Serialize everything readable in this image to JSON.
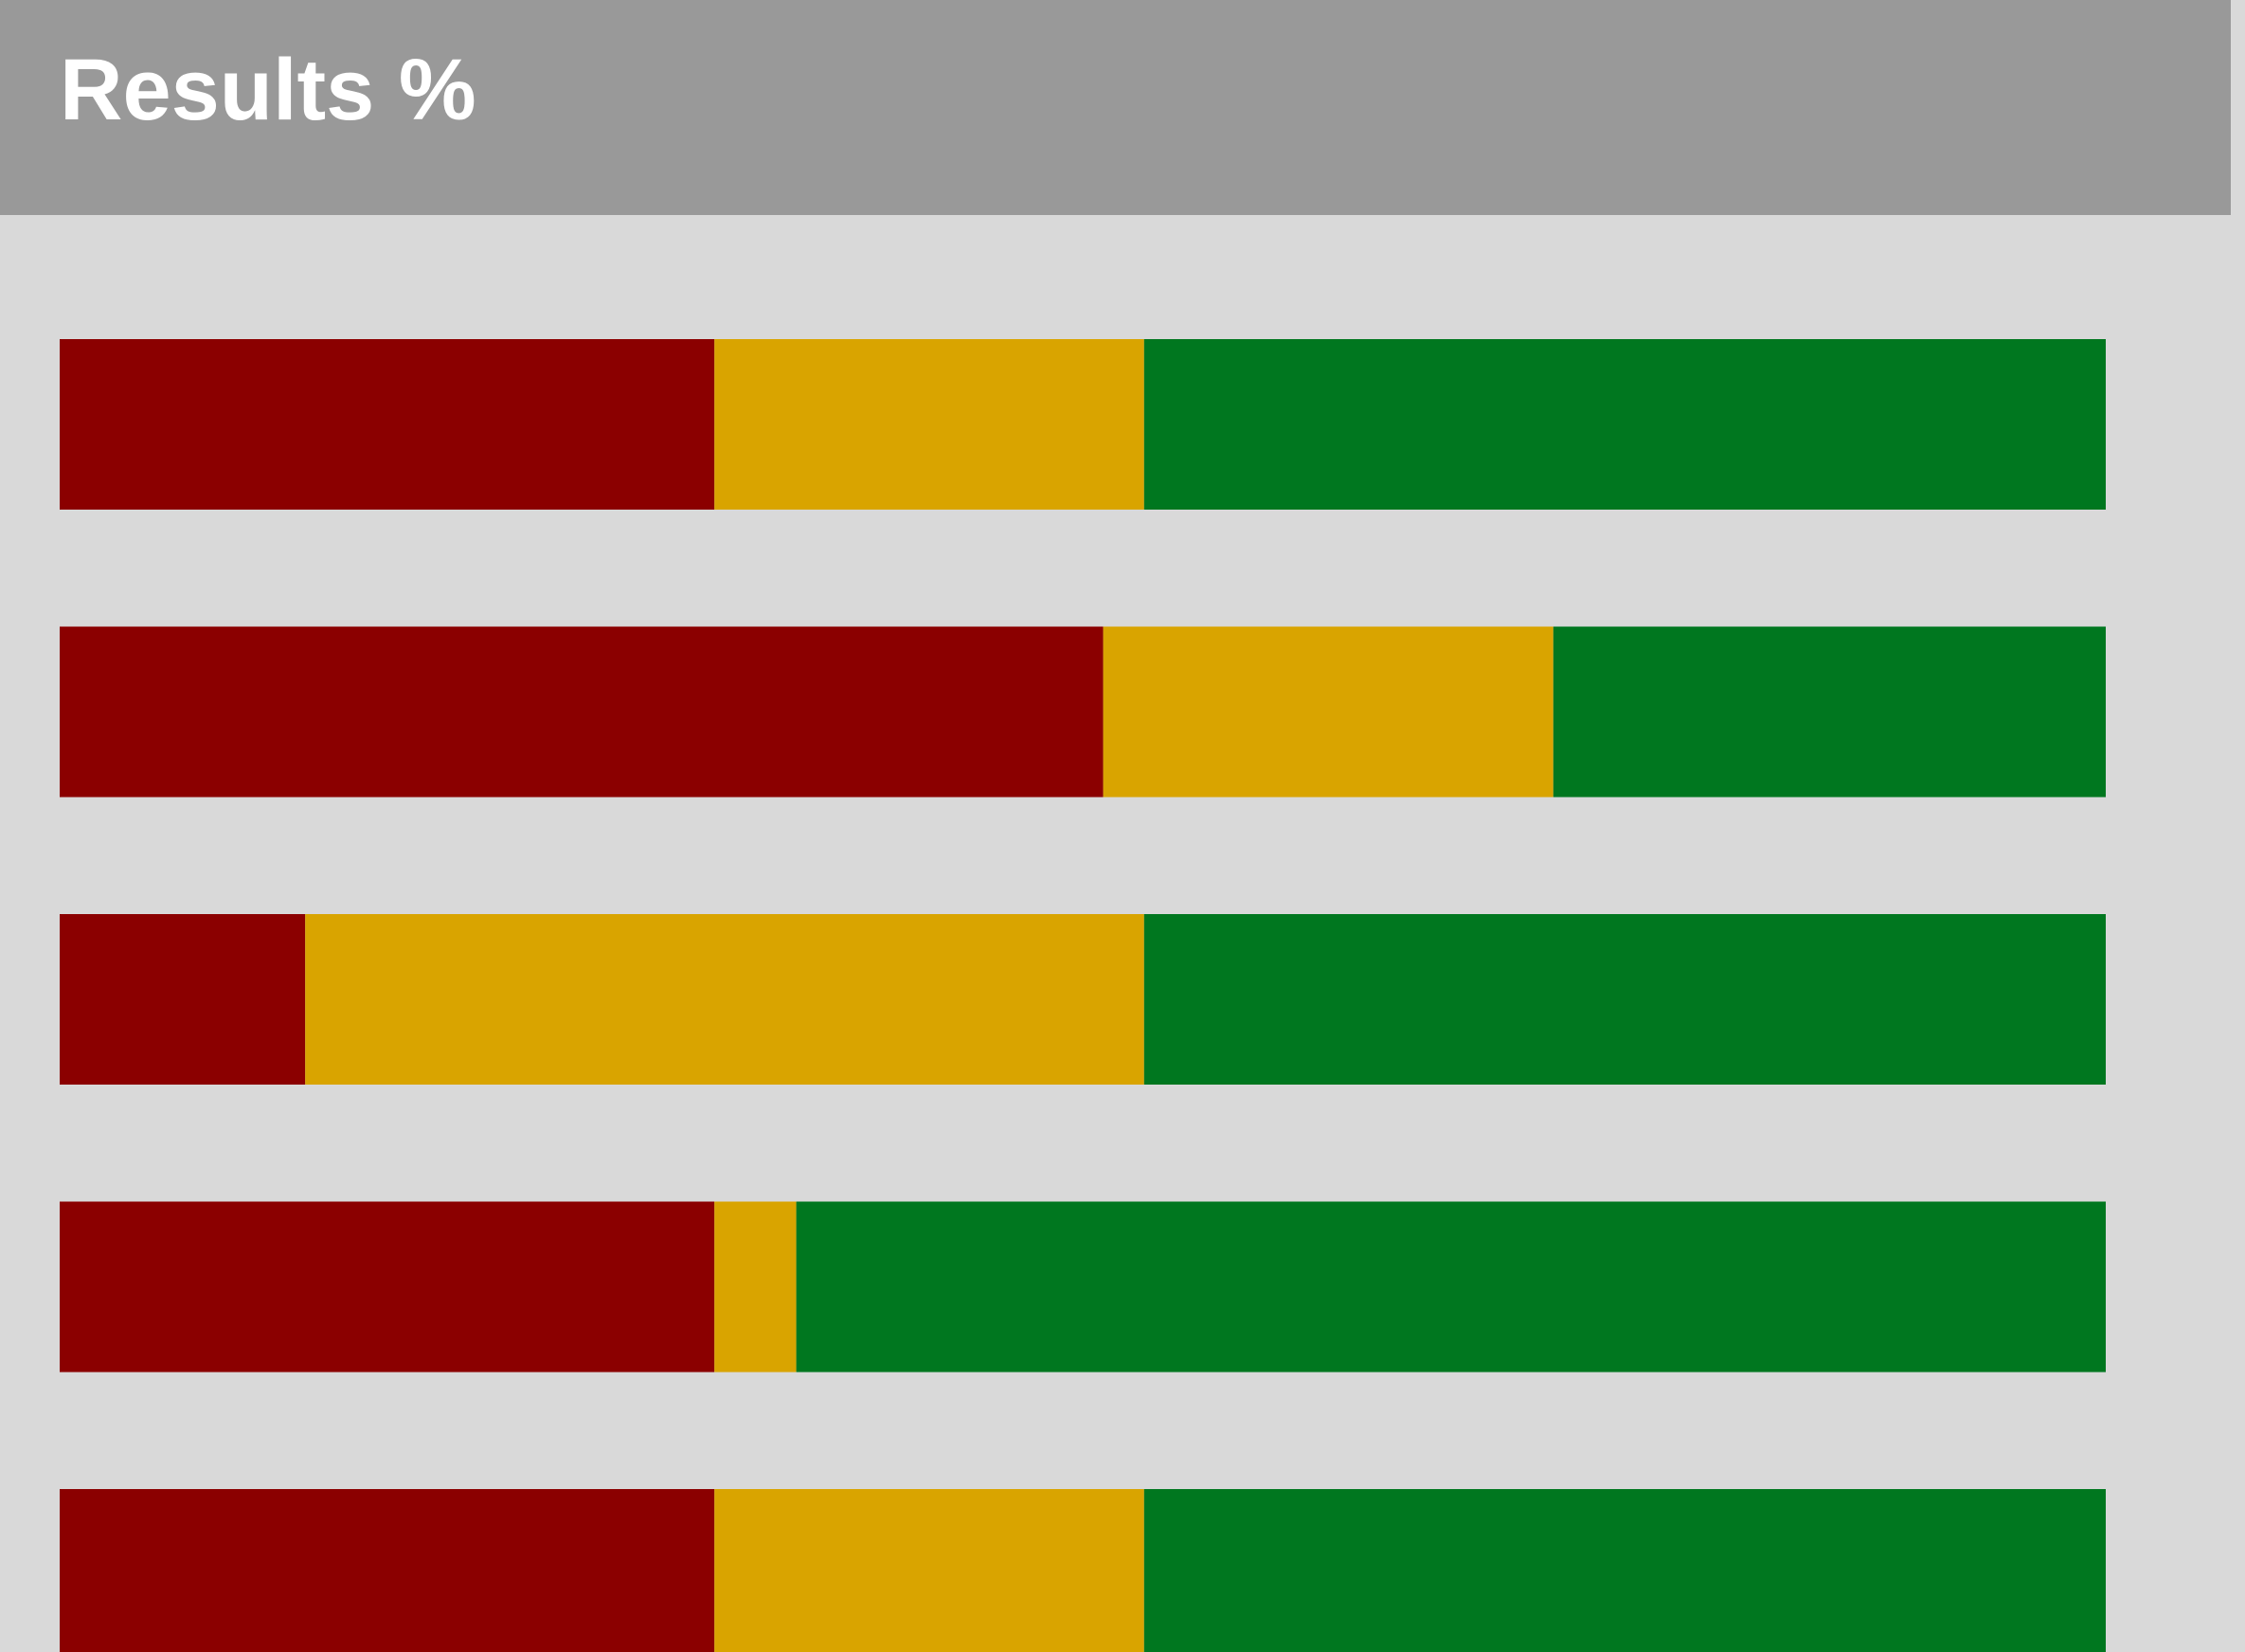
{
  "chart_data": {
    "type": "stacked-bar",
    "orientation": "horizontal",
    "title": "Results %",
    "categories": [
      null,
      null,
      null,
      null,
      null
    ],
    "xlim": [
      0,
      100
    ],
    "series": [
      {
        "color": "#8b0000",
        "values": [
          32,
          51,
          12,
          32,
          32
        ]
      },
      {
        "color": "#d9a400",
        "values": [
          21,
          22,
          41,
          4,
          21
        ]
      },
      {
        "color": "#00771f",
        "values": [
          47,
          27,
          47,
          64,
          47
        ]
      }
    ]
  }
}
